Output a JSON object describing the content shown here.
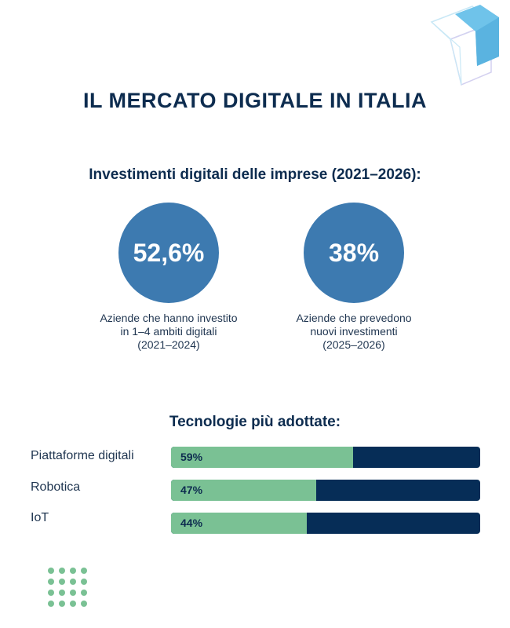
{
  "title": "IL MERCATO DIGITALE IN ITALIA",
  "investments": {
    "heading": "Investimenti digitali delle imprese (2021–2026):",
    "stats": [
      {
        "value": "52,6%",
        "caption": [
          "Aziende che hanno investito",
          "in 1–4 ambiti digitali",
          "(2021–2024)"
        ]
      },
      {
        "value": "38%",
        "caption": [
          "Aziende che prevedono",
          "nuovi investimenti",
          "(2025–2026)"
        ]
      }
    ]
  },
  "technologies": {
    "heading": "Tecnologie più adottate:"
  },
  "chart_data": {
    "type": "bar",
    "orientation": "horizontal",
    "title": "Tecnologie più adottate:",
    "categories": [
      "Piattaforme digitali",
      "Robotica",
      "IoT"
    ],
    "values": [
      59,
      47,
      44
    ],
    "value_labels": [
      "59%",
      "47%",
      "44%"
    ],
    "xlim": [
      0,
      100
    ],
    "unit": "%",
    "colors": {
      "fill": "#7ac194",
      "track": "#062d57"
    }
  },
  "colors": {
    "navy": "#0d2c4f",
    "circle_blue": "#3d7ab0",
    "green": "#7ac194",
    "logo_blue": "#6fc3ea"
  },
  "icons": {
    "logo": "cube-logo-icon",
    "decoration": "dot-grid-icon"
  }
}
